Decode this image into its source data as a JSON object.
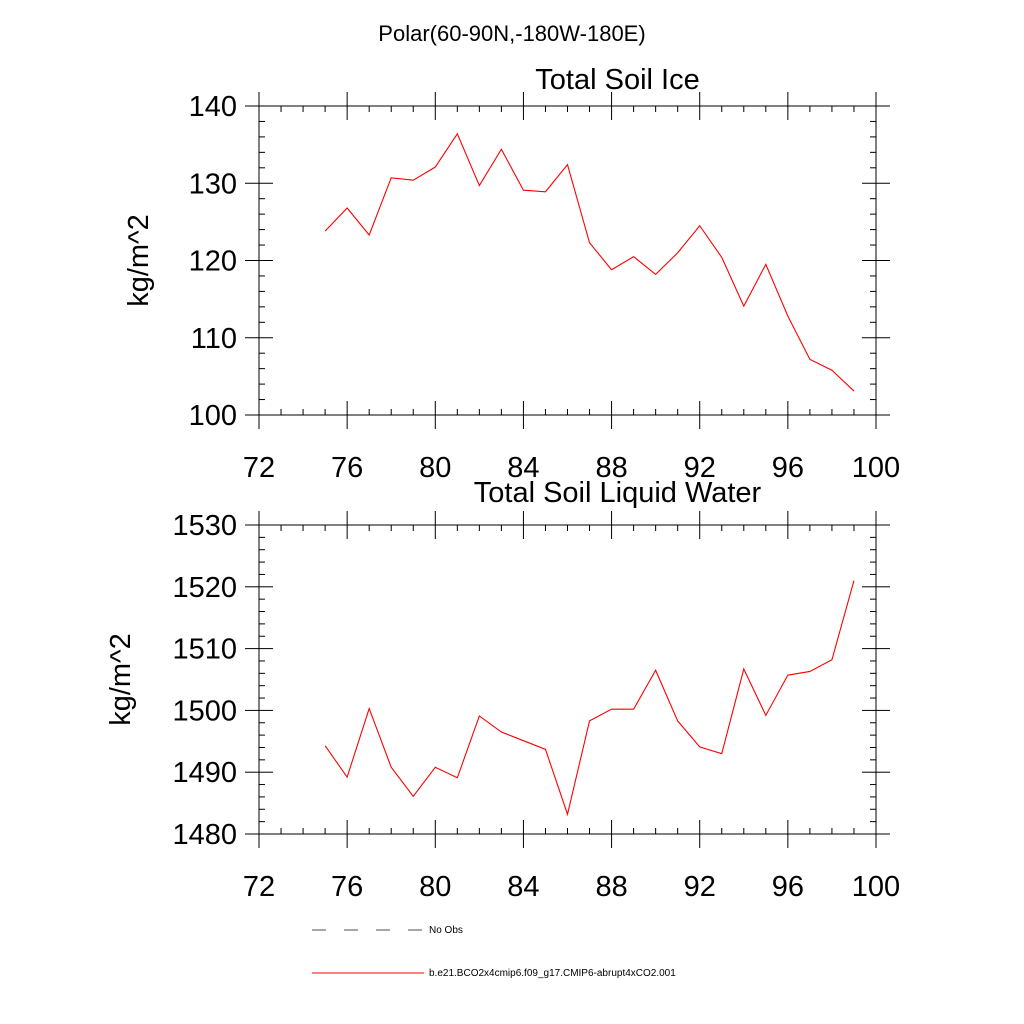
{
  "figure": {
    "main_title": "Polar(60-90N,-180W-180E)"
  },
  "chart_data": [
    {
      "type": "line",
      "title": "Total Soil Ice",
      "xlabel": "",
      "ylabel": "kg/m^2",
      "xlim": [
        72,
        100
      ],
      "ylim": [
        100,
        140
      ],
      "xticks": [
        72,
        76,
        80,
        84,
        88,
        92,
        96,
        100
      ],
      "yticks": [
        100,
        110,
        120,
        130,
        140
      ],
      "grid": false,
      "series": [
        {
          "name": "b.e21.BCO2x4cmip6.f09_g17.CMIP6-abrupt4xCO2.001",
          "color": "#ff0000",
          "x": [
            75,
            76,
            77,
            78,
            79,
            80,
            81,
            82,
            83,
            84,
            85,
            86,
            87,
            88,
            89,
            90,
            91,
            92,
            93,
            94,
            95,
            96,
            97,
            98,
            99
          ],
          "values": [
            123.8,
            126.8,
            123.3,
            130.7,
            130.4,
            132.1,
            136.4,
            129.7,
            134.4,
            129.1,
            128.9,
            132.4,
            122.3,
            118.8,
            120.5,
            118.2,
            121.0,
            124.5,
            120.4,
            114.1,
            119.5,
            112.8,
            107.2,
            105.8,
            103.1
          ]
        }
      ]
    },
    {
      "type": "line",
      "title": "Total Soil Liquid Water",
      "xlabel": "",
      "ylabel": "kg/m^2",
      "xlim": [
        72,
        100
      ],
      "ylim": [
        1480,
        1530
      ],
      "xticks": [
        72,
        76,
        80,
        84,
        88,
        92,
        96,
        100
      ],
      "yticks": [
        1480,
        1490,
        1500,
        1510,
        1520,
        1530
      ],
      "grid": false,
      "series": [
        {
          "name": "b.e21.BCO2x4cmip6.f09_g17.CMIP6-abrupt4xCO2.001",
          "color": "#ff0000",
          "x": [
            75,
            76,
            77,
            78,
            79,
            80,
            81,
            82,
            83,
            84,
            85,
            86,
            87,
            88,
            89,
            90,
            91,
            92,
            93,
            94,
            95,
            96,
            97,
            98,
            99
          ],
          "values": [
            1494.3,
            1489.2,
            1500.3,
            1490.8,
            1486.1,
            1490.8,
            1489.1,
            1499.1,
            1496.5,
            1495.1,
            1493.7,
            1483.2,
            1498.3,
            1500.2,
            1500.2,
            1506.5,
            1498.3,
            1494.1,
            1493.0,
            1506.7,
            1499.2,
            1505.7,
            1506.3,
            1508.2,
            1521.0
          ]
        }
      ]
    }
  ],
  "legend": {
    "placement": "bottom",
    "entries": [
      {
        "label": "No Obs",
        "style": "dashed",
        "color": "#4b4b6e"
      },
      {
        "label": "b.e21.BCO2x4cmip6.f09_g17.CMIP6-abrupt4xCO2.001",
        "style": "solid",
        "color": "#ff0000"
      }
    ]
  }
}
